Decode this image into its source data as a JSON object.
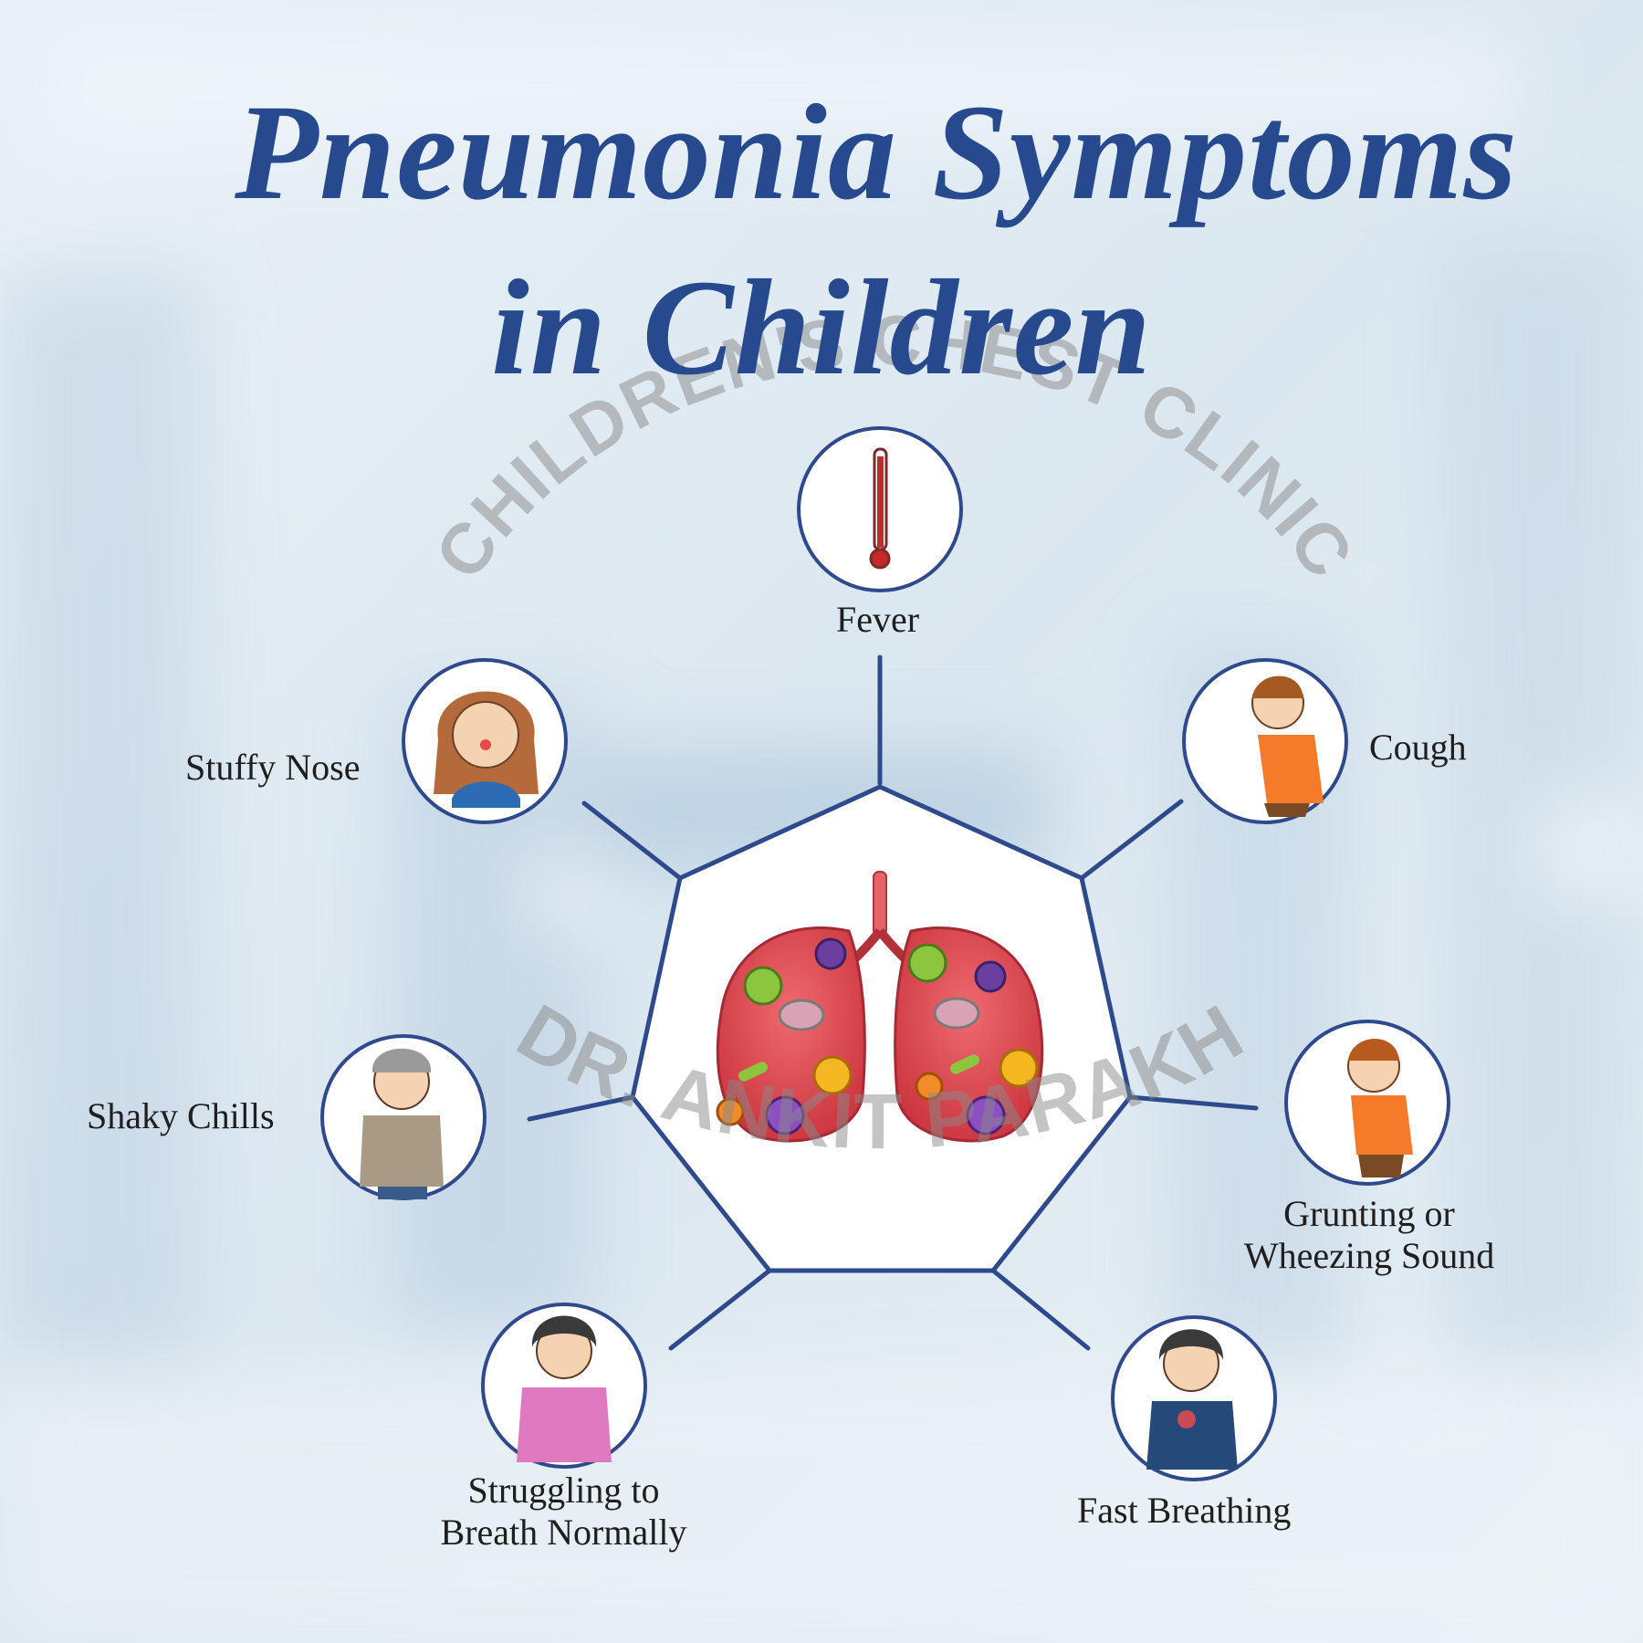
{
  "title": {
    "line1": "Pneumonia Symptoms",
    "line2": "in Children"
  },
  "watermark": {
    "arc_text": "CHILDREN'S CHEST CLINIC",
    "name_text": "DR. ANKIT PARAKH"
  },
  "center": {
    "icon": "infected-lungs-icon"
  },
  "symptoms": [
    {
      "label": "Fever",
      "icon": "thermometer-icon"
    },
    {
      "label": "Cough",
      "icon": "coughing-child-icon"
    },
    {
      "label_line1": "Grunting or",
      "label_line2": "Wheezing Sound",
      "icon": "wheezing-child-icon"
    },
    {
      "label": "Fast Breathing",
      "icon": "chest-pain-child-icon"
    },
    {
      "label_line1": "Struggling to",
      "label_line2": "Breath Normally",
      "icon": "struggling-child-icon"
    },
    {
      "label": "Shaky Chills",
      "icon": "shivering-child-icon"
    },
    {
      "label": "Stuffy Nose",
      "icon": "sick-girl-icon"
    }
  ],
  "colors": {
    "title": "#274a8f",
    "lines": "#2e4a8c",
    "lung": "#d8404a",
    "watermark": "#9a9a9a"
  }
}
